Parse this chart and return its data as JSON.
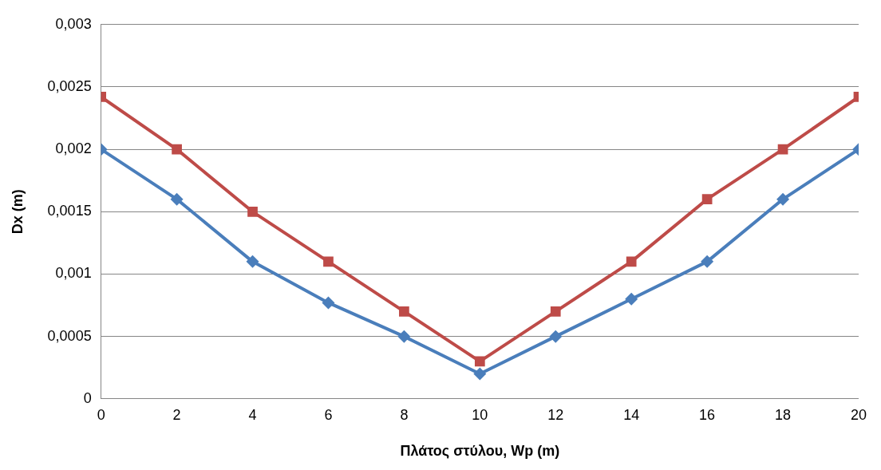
{
  "chart_data": {
    "type": "line",
    "xlabel": "Πλάτος στύλου, Wp (m)",
    "ylabel": "Dx (m)",
    "x": [
      0,
      2,
      4,
      6,
      8,
      10,
      12,
      14,
      16,
      18,
      20
    ],
    "series": [
      {
        "color": "#4a7ebb",
        "marker": "diamond",
        "values": [
          0.002,
          0.0016,
          0.0011,
          0.00077,
          0.0005,
          0.0002,
          0.0005,
          0.0008,
          0.0011,
          0.0016,
          0.002
        ]
      },
      {
        "color": "#be4b48",
        "marker": "square",
        "values": [
          0.00242,
          0.002,
          0.0015,
          0.0011,
          0.0007,
          0.0003,
          0.0007,
          0.0011,
          0.0016,
          0.002,
          0.00242
        ]
      }
    ],
    "xlim": [
      0,
      20
    ],
    "xticks": [
      0,
      2,
      4,
      6,
      8,
      10,
      12,
      14,
      16,
      18,
      20
    ],
    "ylim": [
      0,
      0.003
    ],
    "yticks": [
      0,
      {
        "value": 0.0005,
        "label": "0,0005"
      },
      {
        "value": 0.001,
        "label": "0,001"
      },
      {
        "value": 0.0015,
        "label": "0,0015"
      },
      {
        "value": 0.002,
        "label": "0,002"
      },
      {
        "value": 0.0025,
        "label": "0,0025"
      },
      {
        "value": 0.003,
        "label": "0,003"
      }
    ],
    "grid": "y",
    "legend": false
  }
}
